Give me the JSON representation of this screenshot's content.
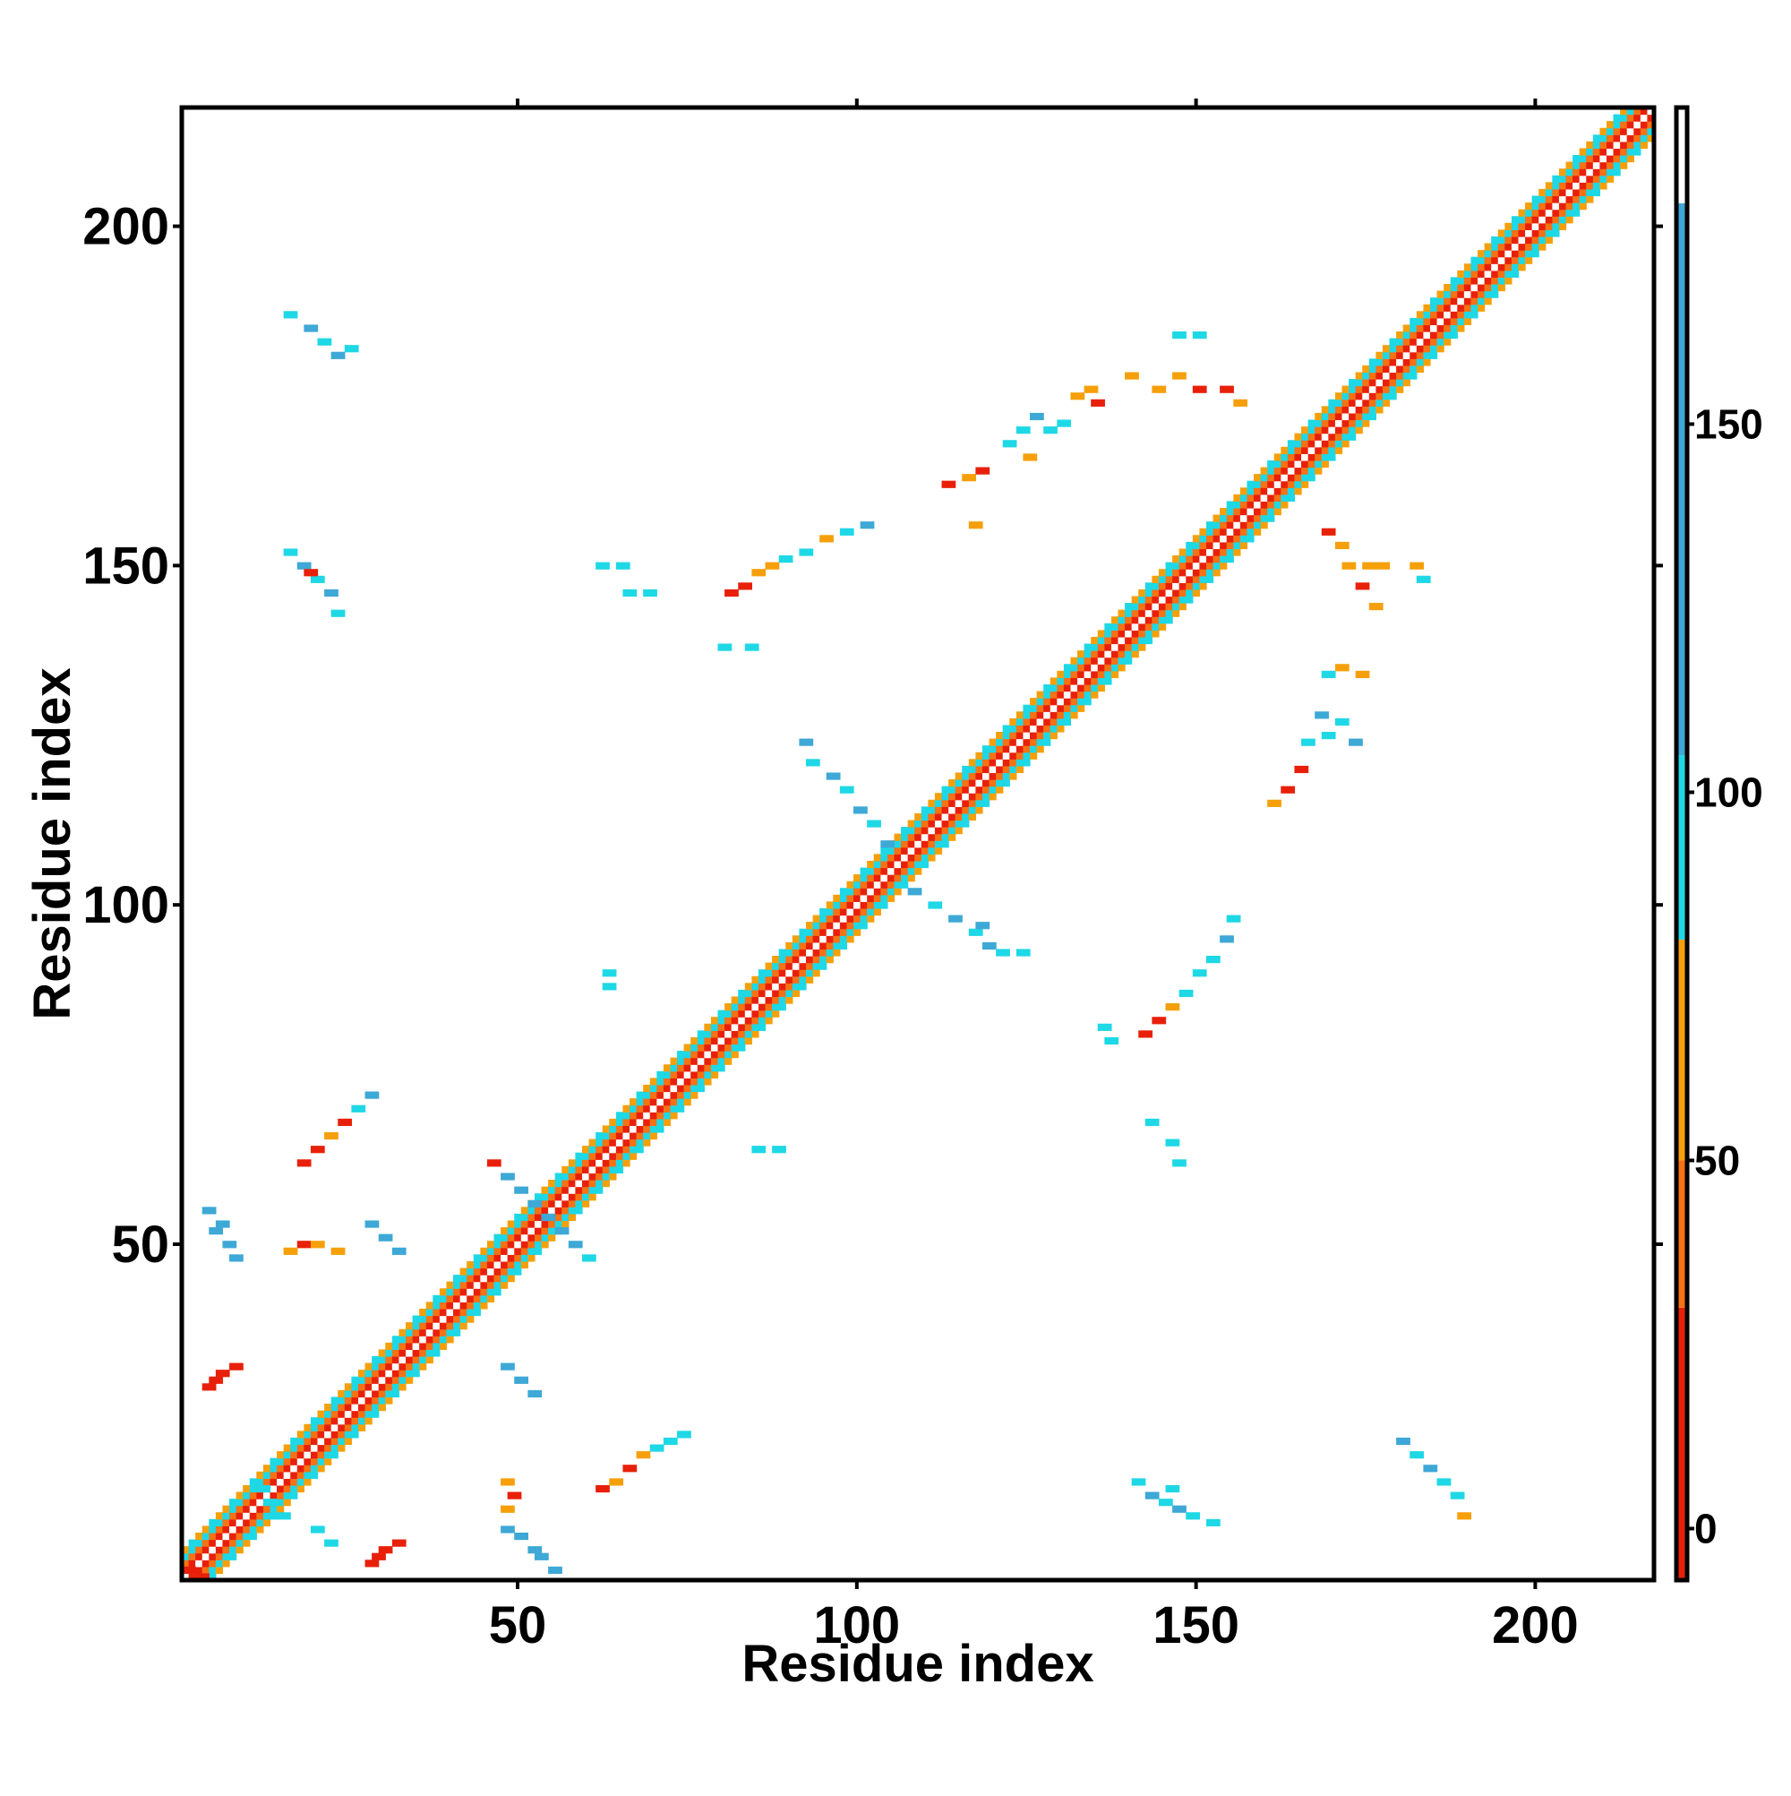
{
  "chart_data": {
    "type": "heatmap",
    "title": "",
    "xlabel": "Residue index",
    "ylabel": "Residue index",
    "xlim": [
      1,
      217
    ],
    "ylim": [
      1,
      217
    ],
    "x_ticks": [
      50,
      100,
      150,
      200
    ],
    "y_ticks": [
      50,
      100,
      150,
      200
    ],
    "grid": false,
    "colorbar": {
      "ticks": [
        0,
        50,
        100,
        150
      ],
      "range": [
        -7,
        193
      ],
      "bands": [
        {
          "from": -7,
          "to": 30,
          "color": "#e8200a"
        },
        {
          "from": 30,
          "to": 50,
          "color": "#f57215"
        },
        {
          "from": 50,
          "to": 80,
          "color": "#f5a00a"
        },
        {
          "from": 80,
          "to": 105,
          "color": "#1ed8e6"
        },
        {
          "from": 105,
          "to": 180,
          "color": "#3ea8d6"
        },
        {
          "from": 180,
          "to": 193,
          "color": "#ffffff"
        }
      ]
    },
    "diagonal_band": {
      "start": 1,
      "end": 217,
      "half_width": 4
    },
    "contacts": [
      {
        "x": 1,
        "y": 2,
        "dist": 10
      },
      {
        "x": 3,
        "y": 1,
        "dist": 10
      },
      {
        "x": 5,
        "y": 52,
        "dist": 130
      },
      {
        "x": 7,
        "y": 50,
        "dist": 130
      },
      {
        "x": 8,
        "y": 48,
        "dist": 130
      },
      {
        "x": 6,
        "y": 53,
        "dist": 130
      },
      {
        "x": 4,
        "y": 55,
        "dist": 130
      },
      {
        "x": 4,
        "y": 29,
        "dist": 10
      },
      {
        "x": 6,
        "y": 31,
        "dist": 10
      },
      {
        "x": 8,
        "y": 32,
        "dist": 10
      },
      {
        "x": 5,
        "y": 30,
        "dist": 10
      },
      {
        "x": 28,
        "y": 3,
        "dist": 10
      },
      {
        "x": 30,
        "y": 5,
        "dist": 10
      },
      {
        "x": 32,
        "y": 6,
        "dist": 10
      },
      {
        "x": 29,
        "y": 4,
        "dist": 10
      },
      {
        "x": 52,
        "y": 5,
        "dist": 130
      },
      {
        "x": 50,
        "y": 7,
        "dist": 130
      },
      {
        "x": 48,
        "y": 8,
        "dist": 130
      },
      {
        "x": 53,
        "y": 4,
        "dist": 130
      },
      {
        "x": 55,
        "y": 2,
        "dist": 130
      },
      {
        "x": 48,
        "y": 60,
        "dist": 130
      },
      {
        "x": 50,
        "y": 58,
        "dist": 130
      },
      {
        "x": 52,
        "y": 56,
        "dist": 130
      },
      {
        "x": 54,
        "y": 54,
        "dist": 130
      },
      {
        "x": 56,
        "y": 52,
        "dist": 130
      },
      {
        "x": 58,
        "y": 50,
        "dist": 130
      },
      {
        "x": 60,
        "y": 48,
        "dist": 90
      },
      {
        "x": 46,
        "y": 62,
        "dist": 10
      },
      {
        "x": 16,
        "y": 187,
        "dist": 90
      },
      {
        "x": 19,
        "y": 185,
        "dist": 130
      },
      {
        "x": 21,
        "y": 183,
        "dist": 90
      },
      {
        "x": 23,
        "y": 181,
        "dist": 130
      },
      {
        "x": 25,
        "y": 182,
        "dist": 90
      },
      {
        "x": 16,
        "y": 152,
        "dist": 90
      },
      {
        "x": 18,
        "y": 150,
        "dist": 130
      },
      {
        "x": 20,
        "y": 148,
        "dist": 90
      },
      {
        "x": 22,
        "y": 146,
        "dist": 130
      },
      {
        "x": 23,
        "y": 143,
        "dist": 90
      },
      {
        "x": 19,
        "y": 149,
        "dist": 10
      },
      {
        "x": 12,
        "y": 14,
        "dist": 90
      },
      {
        "x": 13,
        "y": 12,
        "dist": 90
      },
      {
        "x": 15,
        "y": 10,
        "dist": 90
      },
      {
        "x": 20,
        "y": 8,
        "dist": 90
      },
      {
        "x": 22,
        "y": 6,
        "dist": 90
      },
      {
        "x": 28,
        "y": 72,
        "dist": 130
      },
      {
        "x": 26,
        "y": 70,
        "dist": 90
      },
      {
        "x": 24,
        "y": 68,
        "dist": 10
      },
      {
        "x": 22,
        "y": 66,
        "dist": 60
      },
      {
        "x": 20,
        "y": 64,
        "dist": 10
      },
      {
        "x": 18,
        "y": 62,
        "dist": 10
      },
      {
        "x": 18,
        "y": 50,
        "dist": 10
      },
      {
        "x": 20,
        "y": 50,
        "dist": 60
      },
      {
        "x": 16,
        "y": 49,
        "dist": 60
      },
      {
        "x": 23,
        "y": 49,
        "dist": 60
      },
      {
        "x": 28,
        "y": 53,
        "dist": 130
      },
      {
        "x": 30,
        "y": 51,
        "dist": 130
      },
      {
        "x": 32,
        "y": 49,
        "dist": 130
      },
      {
        "x": 48,
        "y": 32,
        "dist": 130
      },
      {
        "x": 50,
        "y": 30,
        "dist": 130
      },
      {
        "x": 52,
        "y": 28,
        "dist": 130
      },
      {
        "x": 48,
        "y": 15,
        "dist": 60
      },
      {
        "x": 49,
        "y": 13,
        "dist": 10
      },
      {
        "x": 48,
        "y": 11,
        "dist": 60
      },
      {
        "x": 62,
        "y": 14,
        "dist": 10
      },
      {
        "x": 64,
        "y": 15,
        "dist": 60
      },
      {
        "x": 66,
        "y": 17,
        "dist": 10
      },
      {
        "x": 68,
        "y": 19,
        "dist": 60
      },
      {
        "x": 70,
        "y": 20,
        "dist": 90
      },
      {
        "x": 72,
        "y": 21,
        "dist": 90
      },
      {
        "x": 74,
        "y": 22,
        "dist": 90
      },
      {
        "x": 62,
        "y": 150,
        "dist": 90
      },
      {
        "x": 65,
        "y": 150,
        "dist": 90
      },
      {
        "x": 66,
        "y": 146,
        "dist": 90
      },
      {
        "x": 69,
        "y": 146,
        "dist": 90
      },
      {
        "x": 81,
        "y": 146,
        "dist": 10
      },
      {
        "x": 83,
        "y": 147,
        "dist": 10
      },
      {
        "x": 85,
        "y": 149,
        "dist": 60
      },
      {
        "x": 87,
        "y": 150,
        "dist": 60
      },
      {
        "x": 89,
        "y": 151,
        "dist": 90
      },
      {
        "x": 92,
        "y": 152,
        "dist": 90
      },
      {
        "x": 95,
        "y": 154,
        "dist": 60
      },
      {
        "x": 98,
        "y": 155,
        "dist": 90
      },
      {
        "x": 101,
        "y": 156,
        "dist": 130
      },
      {
        "x": 80,
        "y": 138,
        "dist": 90
      },
      {
        "x": 84,
        "y": 138,
        "dist": 90
      },
      {
        "x": 63,
        "y": 90,
        "dist": 90
      },
      {
        "x": 63,
        "y": 88,
        "dist": 90
      },
      {
        "x": 85,
        "y": 64,
        "dist": 90
      },
      {
        "x": 88,
        "y": 64,
        "dist": 90
      },
      {
        "x": 92,
        "y": 124,
        "dist": 130
      },
      {
        "x": 93,
        "y": 121,
        "dist": 90
      },
      {
        "x": 96,
        "y": 119,
        "dist": 130
      },
      {
        "x": 98,
        "y": 117,
        "dist": 90
      },
      {
        "x": 100,
        "y": 114,
        "dist": 130
      },
      {
        "x": 102,
        "y": 112,
        "dist": 90
      },
      {
        "x": 104,
        "y": 109,
        "dist": 130
      },
      {
        "x": 108,
        "y": 102,
        "dist": 130
      },
      {
        "x": 111,
        "y": 100,
        "dist": 90
      },
      {
        "x": 114,
        "y": 98,
        "dist": 130
      },
      {
        "x": 117,
        "y": 96,
        "dist": 90
      },
      {
        "x": 119,
        "y": 94,
        "dist": 130
      },
      {
        "x": 121,
        "y": 93,
        "dist": 90
      },
      {
        "x": 124,
        "y": 93,
        "dist": 90
      },
      {
        "x": 118,
        "y": 97,
        "dist": 130
      },
      {
        "x": 113,
        "y": 162,
        "dist": 10
      },
      {
        "x": 116,
        "y": 163,
        "dist": 60
      },
      {
        "x": 118,
        "y": 164,
        "dist": 10
      },
      {
        "x": 117,
        "y": 156,
        "dist": 60
      },
      {
        "x": 122,
        "y": 168,
        "dist": 90
      },
      {
        "x": 124,
        "y": 170,
        "dist": 90
      },
      {
        "x": 126,
        "y": 172,
        "dist": 130
      },
      {
        "x": 128,
        "y": 170,
        "dist": 90
      },
      {
        "x": 130,
        "y": 171,
        "dist": 90
      },
      {
        "x": 125,
        "y": 166,
        "dist": 60
      },
      {
        "x": 132,
        "y": 175,
        "dist": 60
      },
      {
        "x": 134,
        "y": 176,
        "dist": 60
      },
      {
        "x": 135,
        "y": 174,
        "dist": 10
      },
      {
        "x": 140,
        "y": 178,
        "dist": 60
      },
      {
        "x": 144,
        "y": 176,
        "dist": 60
      },
      {
        "x": 147,
        "y": 178,
        "dist": 60
      },
      {
        "x": 150,
        "y": 176,
        "dist": 10
      },
      {
        "x": 154,
        "y": 176,
        "dist": 10
      },
      {
        "x": 156,
        "y": 174,
        "dist": 60
      },
      {
        "x": 147,
        "y": 184,
        "dist": 90
      },
      {
        "x": 150,
        "y": 184,
        "dist": 90
      },
      {
        "x": 169,
        "y": 155,
        "dist": 10
      },
      {
        "x": 171,
        "y": 153,
        "dist": 60
      },
      {
        "x": 172,
        "y": 150,
        "dist": 60
      },
      {
        "x": 174,
        "y": 147,
        "dist": 10
      },
      {
        "x": 175,
        "y": 150,
        "dist": 60
      },
      {
        "x": 177,
        "y": 150,
        "dist": 60
      },
      {
        "x": 182,
        "y": 150,
        "dist": 60
      },
      {
        "x": 183,
        "y": 148,
        "dist": 90
      },
      {
        "x": 176,
        "y": 144,
        "dist": 60
      },
      {
        "x": 169,
        "y": 134,
        "dist": 90
      },
      {
        "x": 171,
        "y": 135,
        "dist": 60
      },
      {
        "x": 174,
        "y": 134,
        "dist": 60
      },
      {
        "x": 168,
        "y": 128,
        "dist": 130
      },
      {
        "x": 169,
        "y": 125,
        "dist": 90
      },
      {
        "x": 171,
        "y": 127,
        "dist": 90
      },
      {
        "x": 166,
        "y": 124,
        "dist": 90
      },
      {
        "x": 173,
        "y": 124,
        "dist": 130
      },
      {
        "x": 165,
        "y": 120,
        "dist": 10
      },
      {
        "x": 163,
        "y": 117,
        "dist": 10
      },
      {
        "x": 161,
        "y": 115,
        "dist": 60
      },
      {
        "x": 136,
        "y": 82,
        "dist": 90
      },
      {
        "x": 137,
        "y": 80,
        "dist": 90
      },
      {
        "x": 142,
        "y": 81,
        "dist": 10
      },
      {
        "x": 144,
        "y": 83,
        "dist": 10
      },
      {
        "x": 146,
        "y": 85,
        "dist": 60
      },
      {
        "x": 148,
        "y": 87,
        "dist": 90
      },
      {
        "x": 150,
        "y": 90,
        "dist": 90
      },
      {
        "x": 152,
        "y": 92,
        "dist": 90
      },
      {
        "x": 154,
        "y": 95,
        "dist": 130
      },
      {
        "x": 155,
        "y": 98,
        "dist": 90
      },
      {
        "x": 143,
        "y": 68,
        "dist": 90
      },
      {
        "x": 146,
        "y": 65,
        "dist": 90
      },
      {
        "x": 147,
        "y": 62,
        "dist": 90
      },
      {
        "x": 141,
        "y": 15,
        "dist": 90
      },
      {
        "x": 143,
        "y": 13,
        "dist": 130
      },
      {
        "x": 145,
        "y": 12,
        "dist": 90
      },
      {
        "x": 147,
        "y": 11,
        "dist": 130
      },
      {
        "x": 149,
        "y": 10,
        "dist": 90
      },
      {
        "x": 152,
        "y": 9,
        "dist": 90
      },
      {
        "x": 146,
        "y": 14,
        "dist": 90
      },
      {
        "x": 180,
        "y": 21,
        "dist": 130
      },
      {
        "x": 182,
        "y": 19,
        "dist": 90
      },
      {
        "x": 184,
        "y": 17,
        "dist": 130
      },
      {
        "x": 186,
        "y": 15,
        "dist": 90
      },
      {
        "x": 188,
        "y": 13,
        "dist": 90
      },
      {
        "x": 189,
        "y": 10,
        "dist": 60
      }
    ]
  }
}
